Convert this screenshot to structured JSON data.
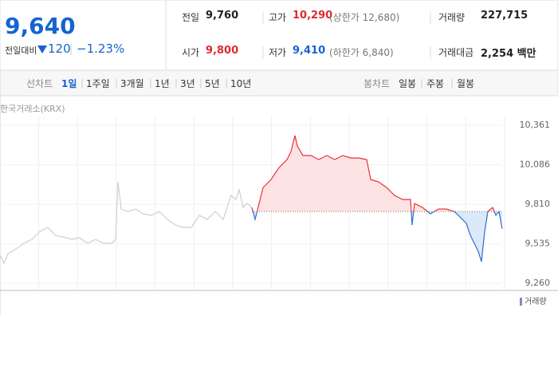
{
  "header": {
    "price": "9,640",
    "change_label": "전일대비",
    "change": "120",
    "change_rate": "−1.23%",
    "stats": [
      [
        {
          "label": "전일",
          "value": "9,760"
        },
        {
          "label": "고가",
          "value": "10,290",
          "note": "(상한가 12,680)"
        },
        {
          "label": "거래량",
          "value": "227,715"
        }
      ],
      [
        {
          "label": "시가",
          "value": "9,800"
        },
        {
          "label": "저가",
          "value": "9,410",
          "note": "(하한가 6,840)"
        },
        {
          "label": "거래대금",
          "value": "2,254 백만"
        }
      ]
    ]
  },
  "toolbar": {
    "line_label": "선차트",
    "line_options": [
      "1일",
      "1주일",
      "3개월",
      "1년",
      "3년",
      "5년",
      "10년"
    ],
    "candle_label": "봉차트",
    "candle_options": [
      "일봉",
      "주봉",
      "월봉"
    ]
  },
  "chart_data": {
    "type": "line",
    "source": "한국거래소(KRX)",
    "volume_legend": "거래량",
    "x": [
      0,
      5,
      10,
      20,
      30,
      40,
      50,
      60,
      70,
      80,
      90,
      100,
      110,
      120,
      130,
      140,
      145,
      148,
      152,
      160,
      170,
      180,
      190,
      200,
      210,
      220,
      230,
      240,
      250,
      260,
      270,
      280,
      290,
      296,
      300,
      305,
      310,
      316,
      320,
      325,
      330,
      340,
      350,
      360,
      365,
      370,
      373,
      380,
      390,
      400,
      410,
      420,
      430,
      440,
      450,
      460,
      465,
      475,
      485,
      495,
      505,
      515,
      517,
      520,
      530,
      540,
      550,
      560,
      570,
      575,
      585,
      590,
      595,
      600,
      604,
      608,
      612,
      618,
      622,
      626,
      630
    ],
    "xlim": [
      0,
      640
    ],
    "ylim": [
      9260,
      10361
    ],
    "yticks": [
      {
        "value": 10361,
        "label": "10,361"
      },
      {
        "value": 10086,
        "label": "10,086"
      },
      {
        "value": 9810,
        "label": "9,810"
      },
      {
        "value": 9535,
        "label": "9,535"
      },
      {
        "value": 9260,
        "label": "9,260"
      }
    ],
    "reference_line": 9760,
    "up_color": "#e8303a",
    "down_color": "#2f6fd0",
    "up_fill": "#fde3e3",
    "down_fill": "#dce9f8",
    "series": [
      {
        "color": "#cfcfcf",
        "values": [
          9454,
          9399,
          9466,
          9499,
          9538,
          9566,
          9621,
          9649,
          9593,
          9582,
          9566,
          9577,
          9538,
          9566,
          9538,
          9538,
          9566,
          9966,
          9777,
          9760,
          9777,
          9744,
          9733,
          9760,
          9705,
          9666,
          9649,
          9649,
          9733,
          9705,
          9760,
          9705,
          9872,
          9844,
          9911,
          9788,
          9816,
          9788,
          null,
          null,
          null,
          null,
          null,
          null,
          null,
          null,
          null,
          null,
          null,
          null,
          null,
          null,
          null,
          null,
          null,
          null,
          null,
          null,
          null,
          null,
          null,
          null,
          null,
          null,
          null,
          null,
          null,
          null,
          null,
          null,
          null,
          null,
          null,
          null,
          null,
          null,
          null,
          null,
          null,
          null,
          null
        ]
      },
      {
        "values": [
          null,
          null,
          null,
          null,
          null,
          null,
          null,
          null,
          null,
          null,
          null,
          null,
          null,
          null,
          null,
          null,
          null,
          null,
          null,
          null,
          null,
          null,
          null,
          null,
          null,
          null,
          null,
          null,
          null,
          null,
          null,
          null,
          null,
          null,
          null,
          null,
          null,
          9788,
          9705,
          9816,
          9927,
          9983,
          10066,
          10122,
          10177,
          10290,
          10216,
          10150,
          10150,
          10122,
          10150,
          10122,
          10150,
          10133,
          10133,
          10122,
          9983,
          9966,
          9927,
          9872,
          9844,
          9844,
          9666,
          9816,
          9788,
          9744,
          9777,
          9777,
          9760,
          9733,
          9677,
          9594,
          9538,
          9482,
          9410,
          9621,
          9760,
          9788,
          9733,
          9760,
          9640
        ]
      }
    ]
  }
}
